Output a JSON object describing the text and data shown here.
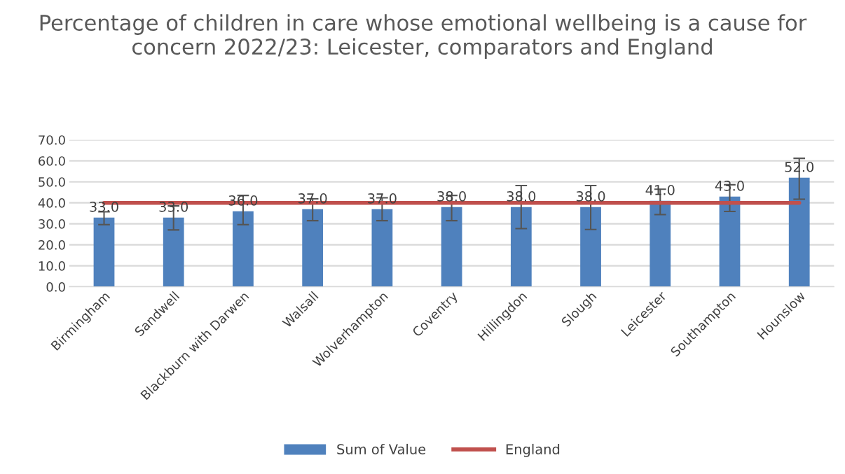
{
  "chart_data": {
    "type": "bar",
    "title": "Percentage of children in care whose emotional wellbeing is a cause for concern 2022/23: Leicester, comparators and England",
    "categories": [
      "Birmingham",
      "Sandwell",
      "Blackburn with Darwen",
      "Walsall",
      "Wolverhampton",
      "Coventry",
      "Hillingdon",
      "Slough",
      "Leicester",
      "Southampton",
      "Hounslow"
    ],
    "series": [
      {
        "name": "Sum of Value",
        "color": "#4f81bd",
        "values": [
          33,
          33,
          36,
          37,
          37,
          38,
          38,
          38,
          41,
          43,
          52
        ],
        "value_labels": [
          "33.0",
          "33.0",
          "36.0",
          "37.0",
          "37.0",
          "38.0",
          "38.0",
          "38.0",
          "41.0",
          "43.0",
          "52.0"
        ],
        "errors": [
          [
            29.6,
            35.7
          ],
          [
            27.1,
            38.5
          ],
          [
            29.6,
            43.5
          ],
          [
            31.5,
            41.9
          ],
          [
            31.5,
            42.4
          ],
          [
            31.5,
            43.5
          ],
          [
            27.7,
            48.2
          ],
          [
            27.3,
            48.2
          ],
          [
            34.4,
            46.5
          ],
          [
            35.9,
            48.6
          ],
          [
            41.7,
            61.2
          ]
        ]
      },
      {
        "name": "England",
        "type": "line",
        "color": "#c0504d",
        "values": [
          40,
          40,
          40,
          40,
          40,
          40,
          40,
          40,
          40,
          40,
          40
        ]
      }
    ],
    "ylim": [
      0,
      70
    ],
    "yticks": [
      {
        "value": 0,
        "label": "0.0"
      },
      {
        "value": 10,
        "label": "10.0"
      },
      {
        "value": 20,
        "label": "20.0"
      },
      {
        "value": 30,
        "label": "30.0"
      },
      {
        "value": 40,
        "label": "40.0"
      },
      {
        "value": 50,
        "label": "50.0"
      },
      {
        "value": 60,
        "label": "60.0"
      },
      {
        "value": 70,
        "label": "70.0"
      }
    ],
    "grid": "y",
    "legend": "bottom",
    "marker": "none",
    "line_style": "solid"
  }
}
